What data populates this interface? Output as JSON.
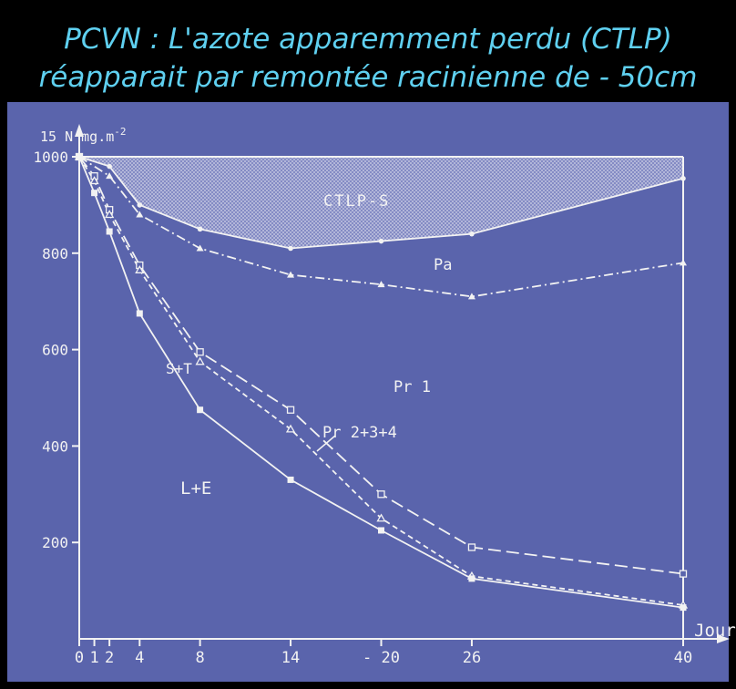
{
  "slide": {
    "title_line1": "PCVN : L'azote apparemment perdu (CTLP)",
    "title_line2": "réapparait par remontée racinienne de - 50cm"
  },
  "chart_data": {
    "type": "line",
    "ylabel": "15 N mg.m",
    "ylabel_exponent": "-2",
    "xlabel": "Jours",
    "ylim": [
      0,
      1000
    ],
    "xlim": [
      0,
      40
    ],
    "y_ticks": [
      200,
      400,
      600,
      800,
      1000
    ],
    "x_ticks": [
      0,
      1,
      2,
      4,
      8,
      14,
      20,
      26,
      40
    ],
    "x_tick_labels": [
      "0",
      "1",
      "2",
      "4",
      "8",
      "14",
      "- 20",
      "26",
      "40"
    ],
    "series": [
      {
        "name": "CTLP-S",
        "style": "solid",
        "marker": "dot",
        "x": [
          0,
          2,
          4,
          8,
          14,
          20,
          26,
          40
        ],
        "y": [
          1000,
          980,
          900,
          850,
          810,
          825,
          840,
          955
        ]
      },
      {
        "name": "Pa",
        "style": "dashdot",
        "marker": "triangle",
        "x": [
          0,
          2,
          4,
          8,
          14,
          20,
          26,
          40
        ],
        "y": [
          1000,
          960,
          880,
          810,
          755,
          735,
          710,
          780
        ]
      },
      {
        "name": "Pr 1",
        "style": "longdash",
        "marker": "square-open",
        "x": [
          0,
          1,
          2,
          4,
          8,
          14,
          20,
          26,
          40
        ],
        "y": [
          1000,
          960,
          890,
          775,
          595,
          475,
          300,
          190,
          135
        ]
      },
      {
        "name": "Pr 2+3+4",
        "style": "shortdash",
        "marker": "triangle-open",
        "x": [
          0,
          1,
          2,
          4,
          8,
          14,
          20,
          26,
          40
        ],
        "y": [
          1000,
          950,
          880,
          765,
          575,
          435,
          250,
          130,
          70
        ]
      },
      {
        "name": "S+T",
        "style": "solid",
        "marker": "square",
        "x": [
          0,
          1,
          2,
          4,
          8,
          14,
          20,
          26,
          40
        ],
        "y": [
          1000,
          925,
          845,
          675,
          475,
          330,
          225,
          125,
          65
        ]
      }
    ],
    "annotations": [
      "CTLP-S",
      "Pa",
      "Pr 1",
      "Pr 2+3+4",
      "S+T",
      "L+E"
    ],
    "colors": {
      "background": "#5a64ac",
      "ink": "#f2f2f2",
      "title": "#5fd0f0"
    }
  }
}
